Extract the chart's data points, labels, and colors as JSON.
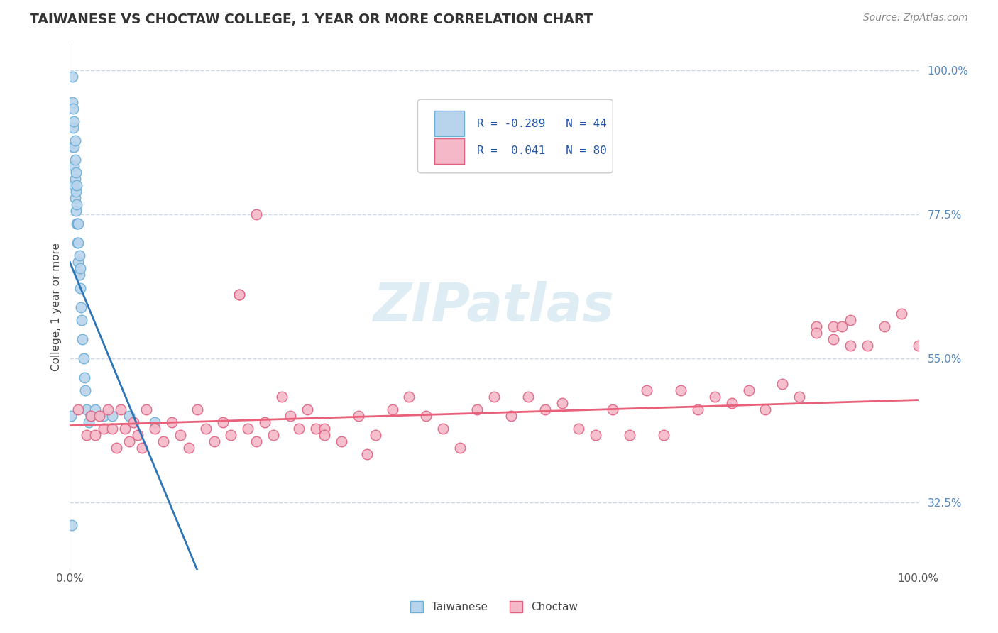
{
  "title": "TAIWANESE VS CHOCTAW COLLEGE, 1 YEAR OR MORE CORRELATION CHART",
  "source": "Source: ZipAtlas.com",
  "ylabel": "College, 1 year or more",
  "xlim": [
    0.0,
    100.0
  ],
  "ylim": [
    22.0,
    104.0
  ],
  "ytick_labels": [
    "32.5%",
    "55.0%",
    "77.5%",
    "100.0%"
  ],
  "ytick_values": [
    32.5,
    55.0,
    77.5,
    100.0
  ],
  "xtick_labels": [
    "0.0%",
    "100.0%"
  ],
  "xtick_values": [
    0.0,
    100.0
  ],
  "legend_r1": "R = -0.289",
  "legend_n1": "N = 44",
  "legend_r2": "R =  0.041",
  "legend_n2": "N = 80",
  "taiwanese_color": "#b8d4ec",
  "taiwanese_edge": "#6baed6",
  "choctaw_color": "#f4b8c8",
  "choctaw_edge": "#e06080",
  "trend_taiwanese_color": "#2e75b6",
  "trend_choctaw_color": "#e8607a",
  "watermark_color": "#d0e4f0",
  "background_color": "#ffffff",
  "grid_color": "#c8d8e8",
  "taiwanese_x": [
    0.2,
    0.3,
    0.3,
    0.4,
    0.4,
    0.4,
    0.5,
    0.5,
    0.5,
    0.5,
    0.6,
    0.6,
    0.6,
    0.6,
    0.7,
    0.7,
    0.7,
    0.8,
    0.8,
    0.8,
    0.9,
    0.9,
    1.0,
    1.0,
    1.0,
    1.1,
    1.1,
    1.2,
    1.2,
    1.3,
    1.4,
    1.5,
    1.6,
    1.7,
    1.8,
    2.0,
    2.2,
    2.5,
    3.0,
    4.0,
    5.0,
    7.0,
    10.0,
    0.15
  ],
  "taiwanese_y": [
    29.0,
    95.0,
    99.0,
    88.0,
    91.0,
    94.0,
    82.0,
    85.0,
    88.0,
    92.0,
    80.0,
    83.0,
    86.0,
    89.0,
    78.0,
    81.0,
    84.0,
    76.0,
    79.0,
    82.0,
    73.0,
    76.0,
    70.0,
    73.0,
    76.0,
    68.0,
    71.0,
    66.0,
    69.0,
    63.0,
    61.0,
    58.0,
    55.0,
    52.0,
    50.0,
    47.0,
    45.0,
    46.0,
    47.0,
    46.0,
    46.0,
    46.0,
    45.0,
    46.0
  ],
  "choctaw_x": [
    1.0,
    2.0,
    2.5,
    3.0,
    3.5,
    4.0,
    4.5,
    5.0,
    5.5,
    6.0,
    6.5,
    7.0,
    7.5,
    8.0,
    8.5,
    9.0,
    10.0,
    11.0,
    12.0,
    13.0,
    14.0,
    15.0,
    16.0,
    17.0,
    18.0,
    19.0,
    20.0,
    21.0,
    22.0,
    23.0,
    24.0,
    25.0,
    26.0,
    27.0,
    28.0,
    29.0,
    30.0,
    32.0,
    34.0,
    36.0,
    38.0,
    40.0,
    42.0,
    44.0,
    46.0,
    48.0,
    50.0,
    52.0,
    54.0,
    56.0,
    58.0,
    60.0,
    62.0,
    64.0,
    66.0,
    68.0,
    70.0,
    72.0,
    74.0,
    76.0,
    78.0,
    80.0,
    82.0,
    84.0,
    86.0,
    88.0,
    90.0,
    92.0,
    94.0,
    96.0,
    98.0,
    100.0,
    22.0,
    20.0,
    30.0,
    35.0,
    88.0,
    90.0,
    91.0,
    92.0
  ],
  "choctaw_y": [
    47.0,
    43.0,
    46.0,
    43.0,
    46.0,
    44.0,
    47.0,
    44.0,
    41.0,
    47.0,
    44.0,
    42.0,
    45.0,
    43.0,
    41.0,
    47.0,
    44.0,
    42.0,
    45.0,
    43.0,
    41.0,
    47.0,
    44.0,
    42.0,
    45.0,
    43.0,
    65.0,
    44.0,
    42.0,
    45.0,
    43.0,
    49.0,
    46.0,
    44.0,
    47.0,
    44.0,
    44.0,
    42.0,
    46.0,
    43.0,
    47.0,
    49.0,
    46.0,
    44.0,
    41.0,
    47.0,
    49.0,
    46.0,
    49.0,
    47.0,
    48.0,
    44.0,
    43.0,
    47.0,
    43.0,
    50.0,
    43.0,
    50.0,
    47.0,
    49.0,
    48.0,
    50.0,
    47.0,
    51.0,
    49.0,
    60.0,
    60.0,
    57.0,
    57.0,
    60.0,
    62.0,
    57.0,
    77.5,
    65.0,
    43.0,
    40.0,
    59.0,
    58.0,
    60.0,
    61.0
  ],
  "tw_trend_x0": 0.0,
  "tw_trend_y0": 70.0,
  "tw_trend_x1": 15.0,
  "tw_trend_y1": 22.0,
  "ch_trend_x0": 0.0,
  "ch_trend_y0": 44.5,
  "ch_trend_x1": 100.0,
  "ch_trend_y1": 48.5
}
